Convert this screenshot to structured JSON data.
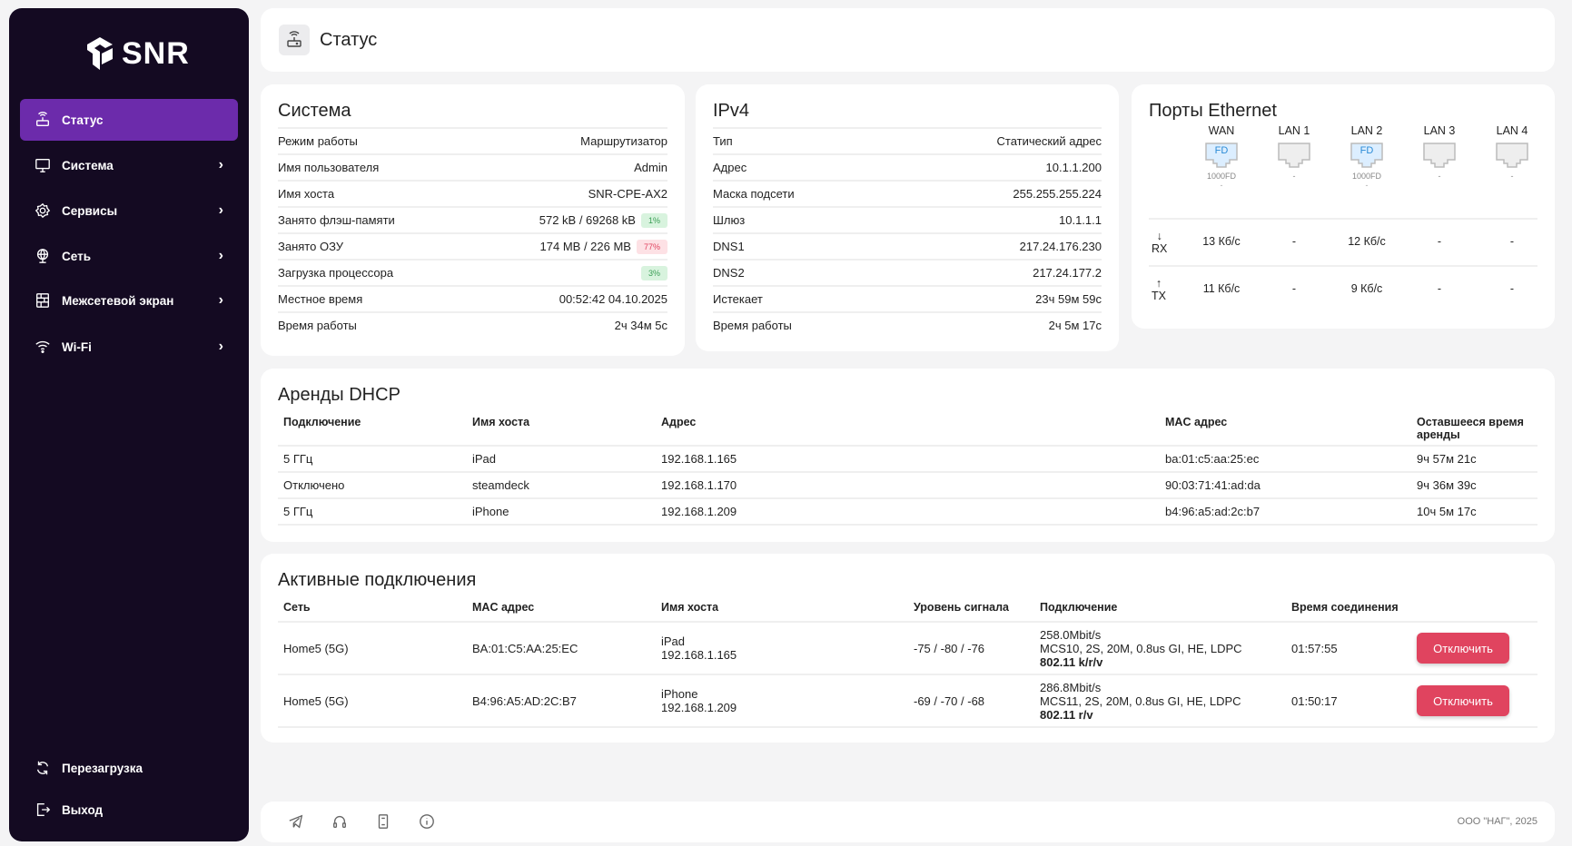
{
  "brand": {
    "name": "SNR"
  },
  "sidebar": {
    "items": [
      {
        "label": "Статус",
        "icon": "router-icon",
        "active": true
      },
      {
        "label": "Система",
        "icon": "monitor-icon"
      },
      {
        "label": "Сервисы",
        "icon": "gear-icon"
      },
      {
        "label": "Сеть",
        "icon": "globe-icon"
      },
      {
        "label": "Межсетевой экран",
        "icon": "firewall-icon"
      },
      {
        "label": "Wi-Fi",
        "icon": "wifi-icon"
      }
    ],
    "bottom": [
      {
        "label": "Перезагрузка",
        "icon": "reload-icon"
      },
      {
        "label": "Выход",
        "icon": "logout-icon"
      }
    ]
  },
  "header": {
    "title": "Статус"
  },
  "system": {
    "title": "Система",
    "rows": [
      {
        "k": "Режим работы",
        "v": "Маршрутизатор"
      },
      {
        "k": "Имя пользователя",
        "v": "Admin"
      },
      {
        "k": "Имя хоста",
        "v": "SNR-CPE-AX2"
      },
      {
        "k": "Занято флэш-памяти",
        "v": "572 kB / 69268 kB",
        "badge": "1%",
        "badge_color": "green"
      },
      {
        "k": "Занято ОЗУ",
        "v": "174 MB / 226 MB",
        "badge": "77%",
        "badge_color": "red"
      },
      {
        "k": "Загрузка процессора",
        "v": "",
        "badge": "3%",
        "badge_color": "green"
      },
      {
        "k": "Местное время",
        "v": "00:52:42 04.10.2025"
      },
      {
        "k": "Время работы",
        "v": "2ч 34м 5с"
      }
    ]
  },
  "ipv4": {
    "title": "IPv4",
    "rows": [
      {
        "k": "Тип",
        "v": "Статический адрес"
      },
      {
        "k": "Адрес",
        "v": "10.1.1.200"
      },
      {
        "k": "Маска подсети",
        "v": "255.255.255.224"
      },
      {
        "k": "Шлюз",
        "v": "10.1.1.1"
      },
      {
        "k": "DNS1",
        "v": "217.24.176.230"
      },
      {
        "k": "DNS2",
        "v": "217.24.177.2"
      },
      {
        "k": "Истекает",
        "v": "23ч 59м 59с"
      },
      {
        "k": "Время работы",
        "v": "2ч 5м 17с"
      }
    ]
  },
  "ports": {
    "title": "Порты Ethernet",
    "rx_label": "RX",
    "tx_label": "TX",
    "items": [
      {
        "name": "WAN",
        "link": true,
        "badge": "FD",
        "speed": "1000FD",
        "extra": "-",
        "rx": "13 Кб/с",
        "tx": "11 Кб/с"
      },
      {
        "name": "LAN 1",
        "link": false,
        "speed": "-",
        "rx": "-",
        "tx": "-"
      },
      {
        "name": "LAN 2",
        "link": true,
        "badge": "FD",
        "speed": "1000FD",
        "extra": "-",
        "rx": "12 Кб/с",
        "tx": "9 Кб/с"
      },
      {
        "name": "LAN 3",
        "link": false,
        "speed": "-",
        "rx": "-",
        "tx": "-"
      },
      {
        "name": "LAN 4",
        "link": false,
        "speed": "-",
        "rx": "-",
        "tx": "-"
      }
    ]
  },
  "dhcp": {
    "title": "Аренды DHCP",
    "columns": [
      "Подключение",
      "Имя хоста",
      "Адрес",
      "MAC адрес",
      "Оставшееся время аренды"
    ],
    "rows": [
      [
        "5 ГГц",
        "iPad",
        "192.168.1.165",
        "ba:01:c5:aa:25:ec",
        "9ч 57м 21с"
      ],
      [
        "Отключено",
        "steamdeck",
        "192.168.1.170",
        "90:03:71:41:ad:da",
        "9ч 36м 39с"
      ],
      [
        "5 ГГц",
        "iPhone",
        "192.168.1.209",
        "b4:96:a5:ad:2c:b7",
        "10ч 5м 17с"
      ]
    ]
  },
  "active": {
    "title": "Активные подключения",
    "columns": [
      "Сеть",
      "MAC адрес",
      "Имя хоста",
      "Уровень сигнала",
      "Подключение",
      "Время соединения",
      ""
    ],
    "button_label": "Отключить",
    "rows": [
      {
        "net": "Home5 (5G)",
        "mac": "BA:01:C5:AA:25:EC",
        "host": "iPad",
        "ip": "192.168.1.165",
        "signal": "-75 / -80 / -76",
        "rate": "258.0Mbit/s",
        "mcs": "MCS10, 2S, 20M, 0.8us GI, HE, LDPC",
        "std": "802.11 k/r/v",
        "time": "01:57:55"
      },
      {
        "net": "Home5 (5G)",
        "mac": "B4:96:A5:AD:2C:B7",
        "host": "iPhone",
        "ip": "192.168.1.209",
        "signal": "-69 / -70 / -68",
        "rate": "286.8Mbit/s",
        "mcs": "MCS11, 2S, 20M, 0.8us GI, HE, LDPC",
        "std": "802.11 r/v",
        "time": "01:50:17"
      }
    ]
  },
  "footer": {
    "copyright": "ООО \"НАГ\", 2025",
    "icons": [
      "telegram-icon",
      "headset-icon",
      "book-icon",
      "info-icon"
    ]
  },
  "colors": {
    "sidebar": "#140a22",
    "accent": "#6c2bab",
    "danger": "#e0445f",
    "port_link": "#dceeff"
  }
}
